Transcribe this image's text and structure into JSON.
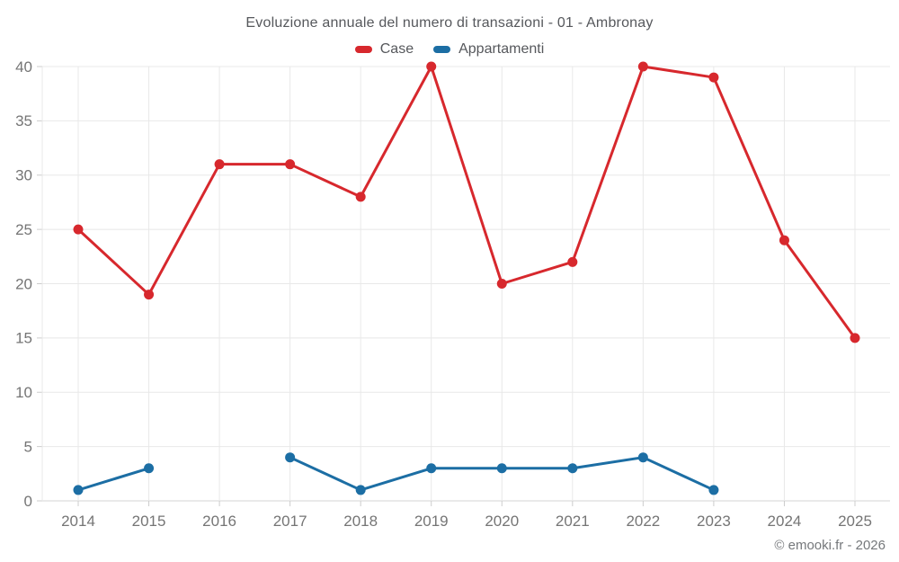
{
  "chart": {
    "title": "Evoluzione annuale del numero di transazioni - 01 - Ambronay"
  },
  "chart_data": {
    "type": "line",
    "title": "Evoluzione annuale del numero di transazioni - 01 - Ambronay",
    "categories": [
      "2014",
      "2015",
      "2016",
      "2017",
      "2018",
      "2019",
      "2020",
      "2021",
      "2022",
      "2023",
      "2024",
      "2025"
    ],
    "series": [
      {
        "name": "Case",
        "color": "#d7282d",
        "values": [
          25,
          19,
          31,
          31,
          28,
          40,
          20,
          22,
          40,
          39,
          24,
          15
        ]
      },
      {
        "name": "Appartamenti",
        "color": "#1c6ea4",
        "values": [
          1,
          3,
          null,
          4,
          1,
          3,
          3,
          3,
          4,
          1,
          null,
          null
        ]
      }
    ],
    "xlabel": "",
    "ylabel": "",
    "ylim": [
      0,
      40
    ],
    "ytick_step": 5,
    "grid": true,
    "legend_position": "top"
  },
  "footer": {
    "credit": "© emooki.fr - 2026"
  },
  "colors": {
    "grid": "#e8e8e8",
    "axis_line": "#d6d6d6",
    "tick": "#cccccc",
    "axis_text": "#757575",
    "background": "#ffffff"
  }
}
